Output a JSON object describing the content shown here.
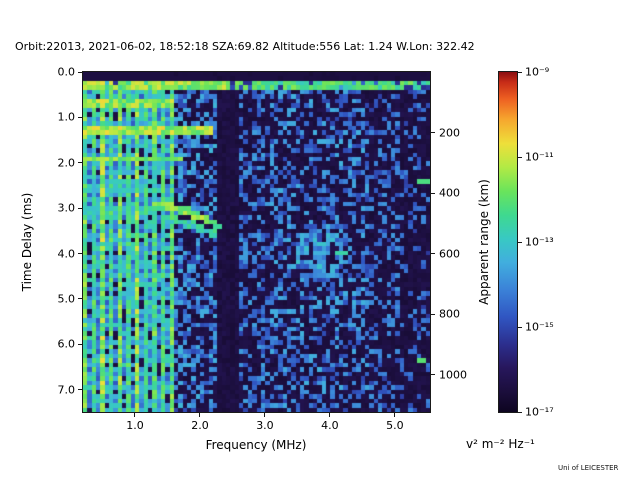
{
  "footer": {
    "credit": "Uni of LEICESTER"
  },
  "chart_data": {
    "type": "heatmap",
    "title": "Orbit:22013, 2021-06-02, 18:52:18 SZA:69.82 Altitude:556 Lat: 1.24 W.Lon: 322.42",
    "xlabel": "Frequency (MHz)",
    "ylabel": "Time Delay (ms)",
    "ylabel_right": "Apparent range (km)",
    "xlim": [
      0.2,
      5.54
    ],
    "ylim": [
      0,
      7.49
    ],
    "y_inverted": true,
    "xticks": [
      1.0,
      2.0,
      3.0,
      4.0,
      5.0
    ],
    "xtick_labels": [
      "1.0",
      "2.0",
      "3.0",
      "4.0",
      "5.0"
    ],
    "yticks": [
      0,
      1,
      2,
      3,
      4,
      5,
      6,
      7
    ],
    "ytick_labels": [
      "0.0",
      "1.0",
      "2.0",
      "3.0",
      "4.0",
      "5.0",
      "6.0",
      "7.0"
    ],
    "right_axis": {
      "ticks": [
        200,
        400,
        600,
        800,
        1000
      ],
      "km_per_ms": 150
    },
    "colorbar": {
      "label": "v² m⁻² Hz⁻¹",
      "scale": "log",
      "tick_labels": [
        "10⁻⁹",
        "10⁻¹¹",
        "10⁻¹³",
        "10⁻¹⁵",
        "10⁻¹⁷"
      ],
      "tick_exponents": [
        -9,
        -11,
        -13,
        -15,
        -17
      ],
      "stops": [
        {
          "p": 0.0,
          "c": "#0d0520"
        },
        {
          "p": 0.06,
          "c": "#1b0e3c"
        },
        {
          "p": 0.13,
          "c": "#27175c"
        },
        {
          "p": 0.2,
          "c": "#2c2f8e"
        },
        {
          "p": 0.28,
          "c": "#3056c2"
        },
        {
          "p": 0.36,
          "c": "#3b82d8"
        },
        {
          "p": 0.44,
          "c": "#41aede"
        },
        {
          "p": 0.51,
          "c": "#38c9c3"
        },
        {
          "p": 0.58,
          "c": "#3fd98f"
        },
        {
          "p": 0.65,
          "c": "#6ae45b"
        },
        {
          "p": 0.72,
          "c": "#b2ea45"
        },
        {
          "p": 0.79,
          "c": "#eedf3a"
        },
        {
          "p": 0.86,
          "c": "#f6a72e"
        },
        {
          "p": 0.92,
          "c": "#ee6122"
        },
        {
          "p": 0.97,
          "c": "#c72c17"
        },
        {
          "p": 1.0,
          "c": "#8a0e11"
        }
      ]
    },
    "heatmap": {
      "ncols": 80,
      "nrows": 76,
      "seed": 42,
      "background_level": [
        0.05,
        0.1
      ],
      "regions": [
        {
          "f0": 0.2,
          "f1": 1.62,
          "p": 0.78,
          "a0": 0.28,
          "a1": 0.55
        },
        {
          "f0": 1.62,
          "f1": 2.3,
          "p": 0.5,
          "a0": 0.24,
          "a1": 0.46
        },
        {
          "f0": 2.3,
          "f1": 2.58,
          "p": 0.05,
          "a0": 0.22,
          "a1": 0.32
        },
        {
          "f0": 2.58,
          "f1": 3.05,
          "p": 0.4,
          "a0": 0.24,
          "a1": 0.42
        },
        {
          "f0": 3.05,
          "f1": 4.6,
          "p": 0.42,
          "a0": 0.24,
          "a1": 0.45
        },
        {
          "f0": 4.6,
          "f1": 5.1,
          "p": 0.32,
          "a0": 0.23,
          "a1": 0.4
        },
        {
          "f0": 5.1,
          "f1": 5.55,
          "p": 0.2,
          "a0": 0.22,
          "a1": 0.38
        }
      ],
      "features": {
        "top_dark_t": 0.15,
        "top_band": {
          "t0": 0.17,
          "t1": 0.4,
          "amp_left": 0.7,
          "amp_right": 0.62,
          "gap_p_left": 0.08,
          "gap_p_right": 0.22,
          "split_f": 2.5
        },
        "stripes": {
          "freqs": [
            0.25,
            0.38,
            0.51,
            0.64,
            0.77,
            0.9,
            1.03,
            1.16,
            1.29,
            1.42,
            1.55
          ],
          "amps": [
            0.68,
            0.62,
            0.75,
            0.64,
            0.7,
            0.62,
            0.72,
            0.6,
            0.66,
            0.63,
            0.68
          ],
          "halfwidth": 0.033
        },
        "hbands": [
          {
            "t": 0.65,
            "f1": 1.62,
            "a": 0.7
          },
          {
            "t": 1.28,
            "f1": 2.2,
            "a": 0.74
          },
          {
            "t": 1.92,
            "f1": 1.75,
            "a": 0.7
          },
          {
            "t": 2.6,
            "f1": 1.15,
            "a": 0.5
          },
          {
            "t": 3.02,
            "f1": 1.3,
            "a": 0.52
          }
        ],
        "trace1": {
          "f0": 1.28,
          "f1": 2.32,
          "t0": 2.92,
          "dt": 0.5,
          "exp": 1.7,
          "a": 0.66
        },
        "trace2": {
          "f0": 1.45,
          "f1": 2.28,
          "t0": 3.25,
          "dt": 0.35,
          "exp": 1.5,
          "a": 0.54
        },
        "dark_band": {
          "f0": 2.3,
          "f1": 2.58,
          "t_from": 0.45
        },
        "clump": {
          "f": 3.85,
          "t": 3.95,
          "rf": 0.4,
          "rt": 0.5,
          "p": 0.5,
          "a": 0.38
        },
        "bright_cells": [
          [
            5.44,
            2.4,
            0.6
          ],
          [
            5.4,
            6.35,
            0.62
          ],
          [
            4.18,
            4.02,
            0.55
          ]
        ]
      }
    }
  }
}
